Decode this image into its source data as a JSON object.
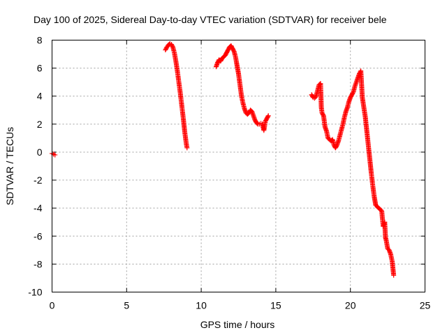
{
  "chart_data": {
    "type": "scatter",
    "title": "Day 100 of 2025, Sidereal Day-to-day VTEC variation (SDTVAR) for receiver bele",
    "xlabel": "GPS time / hours",
    "ylabel": "SDTVAR / TECUs",
    "xlim": [
      0,
      25
    ],
    "ylim": [
      -10,
      8
    ],
    "xticks": [
      0,
      5,
      10,
      15,
      20,
      25
    ],
    "yticks": [
      -10,
      -8,
      -6,
      -4,
      -2,
      0,
      2,
      4,
      6,
      8
    ],
    "xtick_labels": [
      "0",
      "5",
      "10",
      "15",
      "20",
      "25"
    ],
    "ytick_labels": [
      "-10",
      "-8",
      "-6",
      "-4",
      "-2",
      "0",
      "2",
      "4",
      "6",
      "8"
    ],
    "grid": true,
    "marker": "plus",
    "color": "#ff0000",
    "series": [
      {
        "name": "SDTVAR",
        "segments": [
          [
            [
              0.0,
              -0.1
            ],
            [
              0.1,
              -0.15
            ],
            [
              0.2,
              -0.2
            ]
          ],
          [
            [
              7.6,
              7.3
            ],
            [
              7.7,
              7.5
            ],
            [
              7.8,
              7.65
            ],
            [
              7.9,
              7.75
            ],
            [
              8.0,
              7.7
            ],
            [
              8.1,
              7.5
            ],
            [
              8.2,
              7.1
            ],
            [
              8.3,
              6.5
            ],
            [
              8.4,
              5.8
            ],
            [
              8.5,
              5.0
            ],
            [
              8.6,
              4.2
            ],
            [
              8.7,
              3.3
            ],
            [
              8.8,
              2.4
            ],
            [
              8.9,
              1.4
            ],
            [
              9.0,
              0.6
            ],
            [
              9.05,
              0.3
            ]
          ],
          [
            [
              11.0,
              6.1
            ],
            [
              11.1,
              6.4
            ],
            [
              11.2,
              6.6
            ],
            [
              11.3,
              6.5
            ],
            [
              11.4,
              6.7
            ],
            [
              11.5,
              6.8
            ],
            [
              11.6,
              6.9
            ],
            [
              11.7,
              7.1
            ],
            [
              11.8,
              7.3
            ],
            [
              11.9,
              7.5
            ],
            [
              12.0,
              7.6
            ],
            [
              12.1,
              7.4
            ],
            [
              12.2,
              7.2
            ],
            [
              12.3,
              6.8
            ],
            [
              12.4,
              6.2
            ],
            [
              12.5,
              5.6
            ],
            [
              12.6,
              4.8
            ],
            [
              12.7,
              4.0
            ],
            [
              12.8,
              3.5
            ],
            [
              12.9,
              3.1
            ],
            [
              13.0,
              2.8
            ],
            [
              13.1,
              2.7
            ],
            [
              13.2,
              2.8
            ],
            [
              13.3,
              3.0
            ],
            [
              13.4,
              2.9
            ],
            [
              13.5,
              2.6
            ],
            [
              13.6,
              2.3
            ],
            [
              13.7,
              2.1
            ],
            [
              13.8,
              2.0
            ],
            [
              13.9,
              2.0
            ],
            [
              14.0,
              2.05
            ],
            [
              14.1,
              2.0
            ],
            [
              14.2,
              1.55
            ],
            [
              14.3,
              2.2
            ],
            [
              14.4,
              2.4
            ],
            [
              14.5,
              2.6
            ]
          ],
          [
            [
              17.4,
              4.1
            ],
            [
              17.5,
              3.9
            ],
            [
              17.6,
              3.85
            ],
            [
              17.7,
              4.0
            ],
            [
              17.8,
              4.4
            ],
            [
              17.9,
              4.8
            ],
            [
              18.0,
              4.9
            ],
            [
              18.05,
              3.2
            ],
            [
              18.1,
              2.8
            ],
            [
              18.2,
              2.6
            ],
            [
              18.3,
              1.8
            ],
            [
              18.4,
              1.5
            ],
            [
              18.5,
              1.0
            ],
            [
              18.6,
              0.9
            ],
            [
              18.7,
              0.8
            ],
            [
              18.8,
              0.9
            ],
            [
              18.9,
              0.5
            ],
            [
              19.0,
              0.3
            ],
            [
              19.1,
              0.5
            ],
            [
              19.2,
              0.8
            ],
            [
              19.3,
              1.2
            ],
            [
              19.4,
              1.6
            ],
            [
              19.5,
              2.0
            ],
            [
              19.6,
              2.5
            ],
            [
              19.7,
              2.9
            ],
            [
              19.8,
              3.2
            ],
            [
              19.9,
              3.6
            ],
            [
              20.0,
              3.9
            ],
            [
              20.1,
              4.1
            ],
            [
              20.2,
              4.3
            ],
            [
              20.3,
              4.7
            ],
            [
              20.4,
              5.0
            ],
            [
              20.5,
              5.3
            ],
            [
              20.6,
              5.6
            ],
            [
              20.7,
              5.8
            ],
            [
              20.8,
              3.9
            ],
            [
              20.9,
              3.2
            ],
            [
              21.0,
              2.5
            ],
            [
              21.1,
              1.5
            ],
            [
              21.2,
              0.5
            ],
            [
              21.3,
              -0.5
            ],
            [
              21.4,
              -1.5
            ],
            [
              21.5,
              -2.4
            ],
            [
              21.6,
              -3.2
            ],
            [
              21.7,
              -3.8
            ],
            [
              22.1,
              -4.2
            ],
            [
              22.15,
              -4.8
            ],
            [
              22.2,
              -5.3
            ],
            [
              22.3,
              -5.0
            ],
            [
              22.35,
              -6.1
            ],
            [
              22.4,
              -6.3
            ],
            [
              22.5,
              -6.9
            ],
            [
              22.6,
              -7.0
            ],
            [
              22.7,
              -7.3
            ],
            [
              22.8,
              -7.8
            ],
            [
              22.9,
              -8.8
            ]
          ]
        ]
      }
    ]
  }
}
